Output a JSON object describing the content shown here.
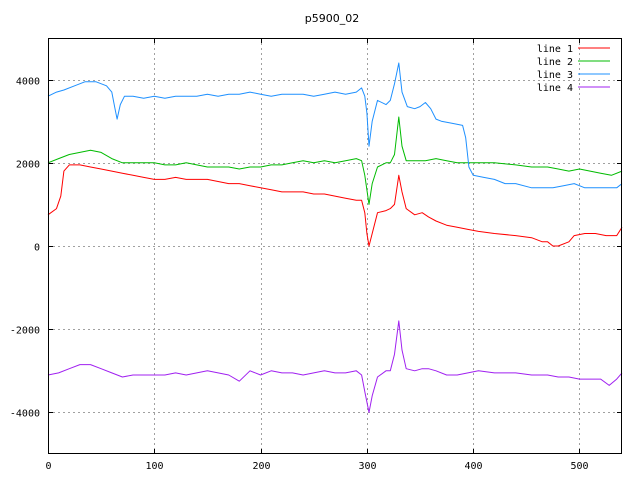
{
  "chart_data": {
    "type": "line",
    "title": "p5900_02",
    "xlabel": "",
    "ylabel": "",
    "xlim": [
      0,
      540
    ],
    "ylim": [
      -5000,
      5000
    ],
    "xticks": [
      0,
      100,
      200,
      300,
      400,
      500
    ],
    "yticks": [
      -4000,
      -2000,
      0,
      2000,
      4000
    ],
    "grid": true,
    "legend_position": "top-right",
    "series": [
      {
        "name": "line 1",
        "color": "#ff0000",
        "points": [
          [
            0,
            750
          ],
          [
            8,
            900
          ],
          [
            12,
            1200
          ],
          [
            15,
            1800
          ],
          [
            20,
            1950
          ],
          [
            30,
            1950
          ],
          [
            40,
            1900
          ],
          [
            50,
            1850
          ],
          [
            60,
            1800
          ],
          [
            70,
            1750
          ],
          [
            80,
            1700
          ],
          [
            90,
            1650
          ],
          [
            100,
            1600
          ],
          [
            110,
            1600
          ],
          [
            120,
            1650
          ],
          [
            130,
            1600
          ],
          [
            140,
            1600
          ],
          [
            150,
            1600
          ],
          [
            160,
            1550
          ],
          [
            170,
            1500
          ],
          [
            180,
            1500
          ],
          [
            190,
            1450
          ],
          [
            200,
            1400
          ],
          [
            210,
            1350
          ],
          [
            220,
            1300
          ],
          [
            230,
            1300
          ],
          [
            240,
            1300
          ],
          [
            250,
            1250
          ],
          [
            260,
            1250
          ],
          [
            270,
            1200
          ],
          [
            280,
            1150
          ],
          [
            290,
            1100
          ],
          [
            295,
            1100
          ],
          [
            298,
            800
          ],
          [
            300,
            300
          ],
          [
            302,
            0
          ],
          [
            305,
            300
          ],
          [
            310,
            800
          ],
          [
            318,
            850
          ],
          [
            322,
            900
          ],
          [
            326,
            1000
          ],
          [
            330,
            1700
          ],
          [
            333,
            1300
          ],
          [
            337,
            900
          ],
          [
            345,
            750
          ],
          [
            352,
            800
          ],
          [
            358,
            700
          ],
          [
            365,
            600
          ],
          [
            375,
            500
          ],
          [
            385,
            450
          ],
          [
            395,
            400
          ],
          [
            405,
            350
          ],
          [
            420,
            300
          ],
          [
            440,
            250
          ],
          [
            455,
            200
          ],
          [
            465,
            100
          ],
          [
            470,
            100
          ],
          [
            475,
            0
          ],
          [
            480,
            0
          ],
          [
            490,
            100
          ],
          [
            495,
            250
          ],
          [
            505,
            300
          ],
          [
            515,
            300
          ],
          [
            525,
            250
          ],
          [
            535,
            250
          ],
          [
            540,
            450
          ]
        ]
      },
      {
        "name": "line 2",
        "color": "#00bb00",
        "points": [
          [
            0,
            2000
          ],
          [
            10,
            2100
          ],
          [
            20,
            2200
          ],
          [
            30,
            2250
          ],
          [
            40,
            2300
          ],
          [
            50,
            2250
          ],
          [
            60,
            2100
          ],
          [
            70,
            2000
          ],
          [
            80,
            2000
          ],
          [
            90,
            2000
          ],
          [
            100,
            2000
          ],
          [
            110,
            1950
          ],
          [
            120,
            1950
          ],
          [
            130,
            2000
          ],
          [
            140,
            1950
          ],
          [
            150,
            1900
          ],
          [
            160,
            1900
          ],
          [
            170,
            1900
          ],
          [
            180,
            1850
          ],
          [
            190,
            1900
          ],
          [
            200,
            1900
          ],
          [
            210,
            1950
          ],
          [
            220,
            1950
          ],
          [
            230,
            2000
          ],
          [
            240,
            2050
          ],
          [
            250,
            2000
          ],
          [
            260,
            2050
          ],
          [
            270,
            2000
          ],
          [
            280,
            2050
          ],
          [
            290,
            2100
          ],
          [
            295,
            2050
          ],
          [
            298,
            1700
          ],
          [
            302,
            1000
          ],
          [
            305,
            1500
          ],
          [
            310,
            1900
          ],
          [
            318,
            2000
          ],
          [
            322,
            2000
          ],
          [
            326,
            2200
          ],
          [
            330,
            3100
          ],
          [
            333,
            2400
          ],
          [
            337,
            2050
          ],
          [
            345,
            2050
          ],
          [
            355,
            2050
          ],
          [
            365,
            2100
          ],
          [
            375,
            2050
          ],
          [
            385,
            2000
          ],
          [
            395,
            2000
          ],
          [
            405,
            2000
          ],
          [
            420,
            2000
          ],
          [
            440,
            1950
          ],
          [
            455,
            1900
          ],
          [
            470,
            1900
          ],
          [
            480,
            1850
          ],
          [
            490,
            1800
          ],
          [
            500,
            1850
          ],
          [
            510,
            1800
          ],
          [
            520,
            1750
          ],
          [
            530,
            1700
          ],
          [
            540,
            1800
          ]
        ]
      },
      {
        "name": "line 3",
        "color": "#1e90ff",
        "points": [
          [
            0,
            3600
          ],
          [
            8,
            3700
          ],
          [
            15,
            3750
          ],
          [
            25,
            3850
          ],
          [
            35,
            3950
          ],
          [
            45,
            3950
          ],
          [
            55,
            3850
          ],
          [
            60,
            3700
          ],
          [
            63,
            3300
          ],
          [
            65,
            3050
          ],
          [
            68,
            3400
          ],
          [
            72,
            3600
          ],
          [
            80,
            3600
          ],
          [
            90,
            3550
          ],
          [
            100,
            3600
          ],
          [
            110,
            3550
          ],
          [
            120,
            3600
          ],
          [
            130,
            3600
          ],
          [
            140,
            3600
          ],
          [
            150,
            3650
          ],
          [
            160,
            3600
          ],
          [
            170,
            3650
          ],
          [
            180,
            3650
          ],
          [
            190,
            3700
          ],
          [
            200,
            3650
          ],
          [
            210,
            3600
          ],
          [
            220,
            3650
          ],
          [
            230,
            3650
          ],
          [
            240,
            3650
          ],
          [
            250,
            3600
          ],
          [
            260,
            3650
          ],
          [
            270,
            3700
          ],
          [
            280,
            3650
          ],
          [
            290,
            3700
          ],
          [
            295,
            3800
          ],
          [
            298,
            3600
          ],
          [
            300,
            3200
          ],
          [
            302,
            2400
          ],
          [
            305,
            3000
          ],
          [
            310,
            3500
          ],
          [
            318,
            3400
          ],
          [
            322,
            3500
          ],
          [
            326,
            3900
          ],
          [
            330,
            4400
          ],
          [
            333,
            3700
          ],
          [
            338,
            3350
          ],
          [
            345,
            3300
          ],
          [
            350,
            3350
          ],
          [
            355,
            3450
          ],
          [
            360,
            3300
          ],
          [
            365,
            3050
          ],
          [
            370,
            3000
          ],
          [
            380,
            2950
          ],
          [
            390,
            2900
          ],
          [
            393,
            2600
          ],
          [
            396,
            1900
          ],
          [
            400,
            1700
          ],
          [
            410,
            1650
          ],
          [
            420,
            1600
          ],
          [
            430,
            1500
          ],
          [
            440,
            1500
          ],
          [
            455,
            1400
          ],
          [
            465,
            1400
          ],
          [
            475,
            1400
          ],
          [
            485,
            1450
          ],
          [
            495,
            1500
          ],
          [
            505,
            1400
          ],
          [
            515,
            1400
          ],
          [
            525,
            1400
          ],
          [
            535,
            1400
          ],
          [
            540,
            1500
          ]
        ]
      },
      {
        "name": "line 4",
        "color": "#a020f0",
        "points": [
          [
            0,
            -3100
          ],
          [
            10,
            -3050
          ],
          [
            20,
            -2950
          ],
          [
            30,
            -2850
          ],
          [
            40,
            -2850
          ],
          [
            50,
            -2950
          ],
          [
            60,
            -3050
          ],
          [
            70,
            -3150
          ],
          [
            80,
            -3100
          ],
          [
            90,
            -3100
          ],
          [
            100,
            -3100
          ],
          [
            110,
            -3100
          ],
          [
            120,
            -3050
          ],
          [
            130,
            -3100
          ],
          [
            140,
            -3050
          ],
          [
            150,
            -3000
          ],
          [
            160,
            -3050
          ],
          [
            170,
            -3100
          ],
          [
            180,
            -3250
          ],
          [
            190,
            -3000
          ],
          [
            200,
            -3100
          ],
          [
            210,
            -3000
          ],
          [
            220,
            -3050
          ],
          [
            230,
            -3050
          ],
          [
            240,
            -3100
          ],
          [
            250,
            -3050
          ],
          [
            260,
            -3000
          ],
          [
            270,
            -3050
          ],
          [
            280,
            -3050
          ],
          [
            290,
            -3000
          ],
          [
            295,
            -3100
          ],
          [
            298,
            -3500
          ],
          [
            302,
            -4000
          ],
          [
            305,
            -3600
          ],
          [
            310,
            -3150
          ],
          [
            318,
            -3000
          ],
          [
            322,
            -3000
          ],
          [
            326,
            -2600
          ],
          [
            330,
            -1800
          ],
          [
            333,
            -2500
          ],
          [
            337,
            -2950
          ],
          [
            345,
            -3000
          ],
          [
            352,
            -2950
          ],
          [
            358,
            -2950
          ],
          [
            365,
            -3000
          ],
          [
            375,
            -3100
          ],
          [
            385,
            -3100
          ],
          [
            395,
            -3050
          ],
          [
            405,
            -3000
          ],
          [
            420,
            -3050
          ],
          [
            440,
            -3050
          ],
          [
            455,
            -3100
          ],
          [
            470,
            -3100
          ],
          [
            480,
            -3150
          ],
          [
            490,
            -3150
          ],
          [
            500,
            -3200
          ],
          [
            510,
            -3200
          ],
          [
            520,
            -3200
          ],
          [
            528,
            -3350
          ],
          [
            535,
            -3200
          ],
          [
            540,
            -3050
          ]
        ]
      }
    ]
  }
}
